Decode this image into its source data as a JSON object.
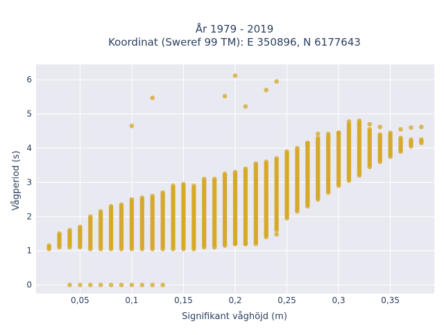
{
  "chart_data": {
    "type": "scatter",
    "title_line1": "År 1979 - 2019",
    "title_line2": "Koordinat (Sweref 99 TM): E 350896, N 6177643",
    "xlabel": "Signifikant våghöjd (m)",
    "ylabel": "Vågperiod (s)",
    "xlim": [
      0.0075,
      0.3925
    ],
    "ylim": [
      -0.25,
      6.45
    ],
    "x_ticks": [
      {
        "value": 0.05,
        "label": "0,05"
      },
      {
        "value": 0.1,
        "label": "0,1"
      },
      {
        "value": 0.15,
        "label": "0,15"
      },
      {
        "value": 0.2,
        "label": "0,2"
      },
      {
        "value": 0.25,
        "label": "0,25"
      },
      {
        "value": 0.3,
        "label": "0,3"
      },
      {
        "value": 0.35,
        "label": "0,35"
      }
    ],
    "y_ticks": [
      {
        "value": 0,
        "label": "0"
      },
      {
        "value": 1,
        "label": "1"
      },
      {
        "value": 2,
        "label": "2"
      },
      {
        "value": 3,
        "label": "3"
      },
      {
        "value": 4,
        "label": "4"
      },
      {
        "value": 5,
        "label": "5"
      },
      {
        "value": 6,
        "label": "6"
      }
    ],
    "grid": true,
    "background": "#e9e9f1",
    "marker_color": "#d4a520",
    "columns": [
      {
        "x": 0.02,
        "ymin": 1.05,
        "ymax": 1.15
      },
      {
        "x": 0.03,
        "ymin": 1.1,
        "ymax": 1.5
      },
      {
        "x": 0.04,
        "ymin": 1.1,
        "ymax": 1.6
      },
      {
        "x": 0.05,
        "ymin": 1.1,
        "ymax": 1.7
      },
      {
        "x": 0.06,
        "ymin": 1.05,
        "ymax": 2.0
      },
      {
        "x": 0.07,
        "ymin": 1.05,
        "ymax": 2.15
      },
      {
        "x": 0.08,
        "ymin": 1.05,
        "ymax": 2.3
      },
      {
        "x": 0.09,
        "ymin": 1.05,
        "ymax": 2.35
      },
      {
        "x": 0.1,
        "ymin": 1.05,
        "ymax": 2.5
      },
      {
        "x": 0.11,
        "ymin": 1.05,
        "ymax": 2.55
      },
      {
        "x": 0.12,
        "ymin": 1.05,
        "ymax": 2.6
      },
      {
        "x": 0.13,
        "ymin": 1.05,
        "ymax": 2.7
      },
      {
        "x": 0.14,
        "ymin": 1.05,
        "ymax": 2.9
      },
      {
        "x": 0.15,
        "ymin": 1.05,
        "ymax": 2.95
      },
      {
        "x": 0.16,
        "ymin": 1.05,
        "ymax": 2.9
      },
      {
        "x": 0.17,
        "ymin": 1.1,
        "ymax": 3.1
      },
      {
        "x": 0.18,
        "ymin": 1.1,
        "ymax": 3.1
      },
      {
        "x": 0.19,
        "ymin": 1.15,
        "ymax": 3.25
      },
      {
        "x": 0.2,
        "ymin": 1.2,
        "ymax": 3.3
      },
      {
        "x": 0.21,
        "ymin": 1.2,
        "ymax": 3.4
      },
      {
        "x": 0.22,
        "ymin": 1.25,
        "ymax": 3.55
      },
      {
        "x": 0.23,
        "ymin": 1.4,
        "ymax": 3.6
      },
      {
        "x": 0.24,
        "ymin": 1.6,
        "ymax": 3.7
      },
      {
        "x": 0.25,
        "ymin": 1.95,
        "ymax": 3.9
      },
      {
        "x": 0.26,
        "ymin": 2.15,
        "ymax": 4.0
      },
      {
        "x": 0.27,
        "ymin": 2.3,
        "ymax": 4.15
      },
      {
        "x": 0.28,
        "ymin": 2.5,
        "ymax": 4.3
      },
      {
        "x": 0.29,
        "ymin": 2.7,
        "ymax": 4.35
      },
      {
        "x": 0.3,
        "ymin": 2.9,
        "ymax": 4.45
      },
      {
        "x": 0.31,
        "ymin": 3.05,
        "ymax": 4.7
      },
      {
        "x": 0.32,
        "ymin": 3.2,
        "ymax": 4.8
      },
      {
        "x": 0.33,
        "ymin": 3.45,
        "ymax": 4.55
      },
      {
        "x": 0.34,
        "ymin": 3.6,
        "ymax": 4.4
      },
      {
        "x": 0.35,
        "ymin": 3.75,
        "ymax": 4.45
      },
      {
        "x": 0.36,
        "ymin": 3.9,
        "ymax": 4.3
      },
      {
        "x": 0.37,
        "ymin": 4.05,
        "ymax": 4.25
      },
      {
        "x": 0.38,
        "ymin": 4.15,
        "ymax": 4.25
      }
    ],
    "extra_points": [
      {
        "x": 0.04,
        "y": 0
      },
      {
        "x": 0.05,
        "y": 0
      },
      {
        "x": 0.06,
        "y": 0
      },
      {
        "x": 0.07,
        "y": 0
      },
      {
        "x": 0.08,
        "y": 0
      },
      {
        "x": 0.09,
        "y": 0
      },
      {
        "x": 0.1,
        "y": 0
      },
      {
        "x": 0.11,
        "y": 0
      },
      {
        "x": 0.12,
        "y": 0
      },
      {
        "x": 0.13,
        "y": 0
      },
      {
        "x": 0.1,
        "y": 4.65
      },
      {
        "x": 0.12,
        "y": 5.47
      },
      {
        "x": 0.19,
        "y": 5.52
      },
      {
        "x": 0.2,
        "y": 6.12
      },
      {
        "x": 0.21,
        "y": 5.22
      },
      {
        "x": 0.23,
        "y": 5.7
      },
      {
        "x": 0.24,
        "y": 5.95
      },
      {
        "x": 0.27,
        "y": 4.15
      },
      {
        "x": 0.28,
        "y": 4.42
      },
      {
        "x": 0.29,
        "y": 4.42
      },
      {
        "x": 0.3,
        "y": 4.45
      },
      {
        "x": 0.31,
        "y": 4.78
      },
      {
        "x": 0.33,
        "y": 4.7
      },
      {
        "x": 0.34,
        "y": 4.62
      },
      {
        "x": 0.36,
        "y": 4.55
      },
      {
        "x": 0.37,
        "y": 4.6
      },
      {
        "x": 0.38,
        "y": 4.62
      },
      {
        "x": 0.24,
        "y": 1.48
      },
      {
        "x": 0.22,
        "y": 1.2
      },
      {
        "x": 0.21,
        "y": 1.2
      },
      {
        "x": 0.2,
        "y": 1.2
      }
    ]
  }
}
